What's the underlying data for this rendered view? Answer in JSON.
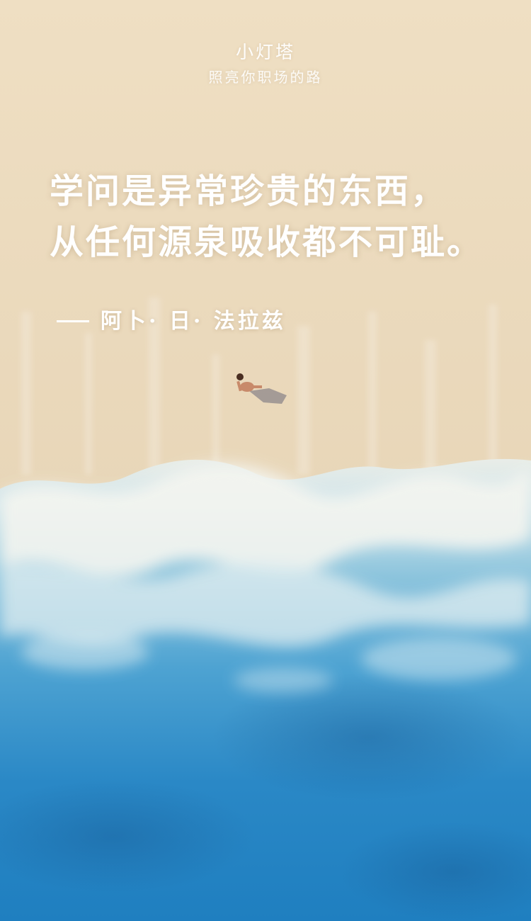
{
  "brand": {
    "name": "小灯塔",
    "tagline": "照亮你职场的路"
  },
  "quote": {
    "line1": "学问是异常珍贵的东西，",
    "line2": "从任何源泉吸收都不可耻。"
  },
  "author": {
    "text": "阿卜· 日· 法拉兹"
  },
  "colors": {
    "sand": "#ecdcc0",
    "foam": "#f2f3ee",
    "shallow_water": "#8fc6dc",
    "deep_water": "#1f7fc0",
    "text": "#ffffff"
  }
}
